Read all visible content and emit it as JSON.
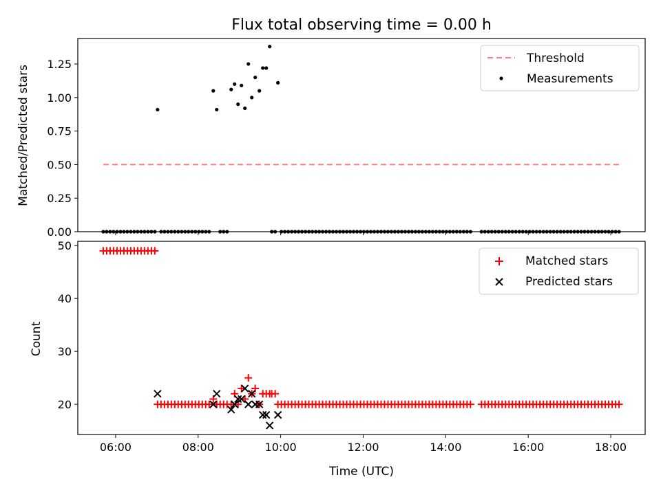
{
  "chart_data": [
    {
      "type": "scatter",
      "title": "Flux total observing time = 0.00 h",
      "xlabel": "",
      "ylabel": "Matched/Predicted stars",
      "xlim": [
        "05:05",
        "18:50"
      ],
      "ylim": [
        0,
        1.44
      ],
      "xticks": [
        "06:00",
        "08:00",
        "10:00",
        "12:00",
        "14:00",
        "16:00",
        "18:00"
      ],
      "yticks": [
        "0.00",
        "0.25",
        "0.50",
        "0.75",
        "1.00",
        "1.25"
      ],
      "legend": "top-right",
      "grid": false,
      "series": [
        {
          "name": "Threshold",
          "kind": "dashed-line",
          "color": "#ff7f7f",
          "points": [
            [
              "05:42",
              0.5
            ],
            [
              "18:13",
              0.5
            ]
          ]
        },
        {
          "name": "Measurements",
          "kind": "scatter",
          "color": "#000000",
          "points": [
            [
              "07:01",
              0.91
            ],
            [
              "08:22",
              1.05
            ],
            [
              "08:27",
              0.91
            ],
            [
              "08:48",
              1.06
            ],
            [
              "08:53",
              1.1
            ],
            [
              "08:58",
              0.95
            ],
            [
              "09:03",
              1.09
            ],
            [
              "09:08",
              0.92
            ],
            [
              "09:13",
              1.25
            ],
            [
              "09:18",
              1.0
            ],
            [
              "09:23",
              1.15
            ],
            [
              "09:29",
              1.05
            ],
            [
              "09:34",
              1.22
            ],
            [
              "09:39",
              1.22
            ],
            [
              "09:44",
              1.38
            ],
            [
              "09:56",
              1.11
            ]
          ],
          "zero_runs": [
            [
              "05:42",
              "06:57"
            ],
            [
              "07:06",
              "08:17"
            ],
            [
              "08:32",
              "08:43"
            ],
            [
              "09:47",
              "09:52"
            ],
            [
              "10:01",
              "14:40"
            ],
            [
              "14:52",
              "18:13"
            ]
          ]
        }
      ]
    },
    {
      "type": "scatter",
      "title": "",
      "xlabel": "Time (UTC)",
      "ylabel": "Count",
      "xlim": [
        "05:05",
        "18:50"
      ],
      "ylim": [
        14.3,
        50.8
      ],
      "xticks": [
        "06:00",
        "08:00",
        "10:00",
        "12:00",
        "14:00",
        "16:00",
        "18:00"
      ],
      "yticks": [
        "20",
        "30",
        "40",
        "50"
      ],
      "legend": "top-right",
      "grid": false,
      "series": [
        {
          "name": "Matched stars",
          "marker": "+",
          "color": "#ff0000",
          "runs": [
            {
              "from": "05:42",
              "to": "06:57",
              "value": 49
            },
            {
              "from": "07:01",
              "to": "08:17",
              "value": 20
            },
            {
              "from": "08:32",
              "to": "08:43",
              "value": 20
            },
            {
              "from": "09:47",
              "to": "09:52",
              "value": 22
            },
            {
              "from": "10:01",
              "to": "14:40",
              "value": 20
            },
            {
              "from": "14:52",
              "to": "18:13",
              "value": 20
            }
          ],
          "points": [
            [
              "08:22",
              21
            ],
            [
              "08:27",
              20
            ],
            [
              "08:48",
              20
            ],
            [
              "08:53",
              22
            ],
            [
              "08:58",
              20
            ],
            [
              "09:03",
              23
            ],
            [
              "09:08",
              21
            ],
            [
              "09:13",
              25
            ],
            [
              "09:18",
              22
            ],
            [
              "09:23",
              23
            ],
            [
              "09:29",
              20
            ],
            [
              "09:34",
              22
            ],
            [
              "09:39",
              22
            ],
            [
              "09:44",
              22
            ],
            [
              "09:56",
              20
            ]
          ]
        },
        {
          "name": "Predicted stars",
          "marker": "x",
          "color": "#000000",
          "points": [
            [
              "07:01",
              22
            ],
            [
              "08:22",
              20
            ],
            [
              "08:27",
              22
            ],
            [
              "08:48",
              19
            ],
            [
              "08:53",
              20
            ],
            [
              "08:58",
              21
            ],
            [
              "09:03",
              21
            ],
            [
              "09:08",
              23
            ],
            [
              "09:13",
              20
            ],
            [
              "09:18",
              22
            ],
            [
              "09:23",
              20
            ],
            [
              "09:29",
              20
            ],
            [
              "09:34",
              18
            ],
            [
              "09:39",
              18
            ],
            [
              "09:44",
              16
            ],
            [
              "09:56",
              18
            ]
          ]
        }
      ]
    }
  ]
}
